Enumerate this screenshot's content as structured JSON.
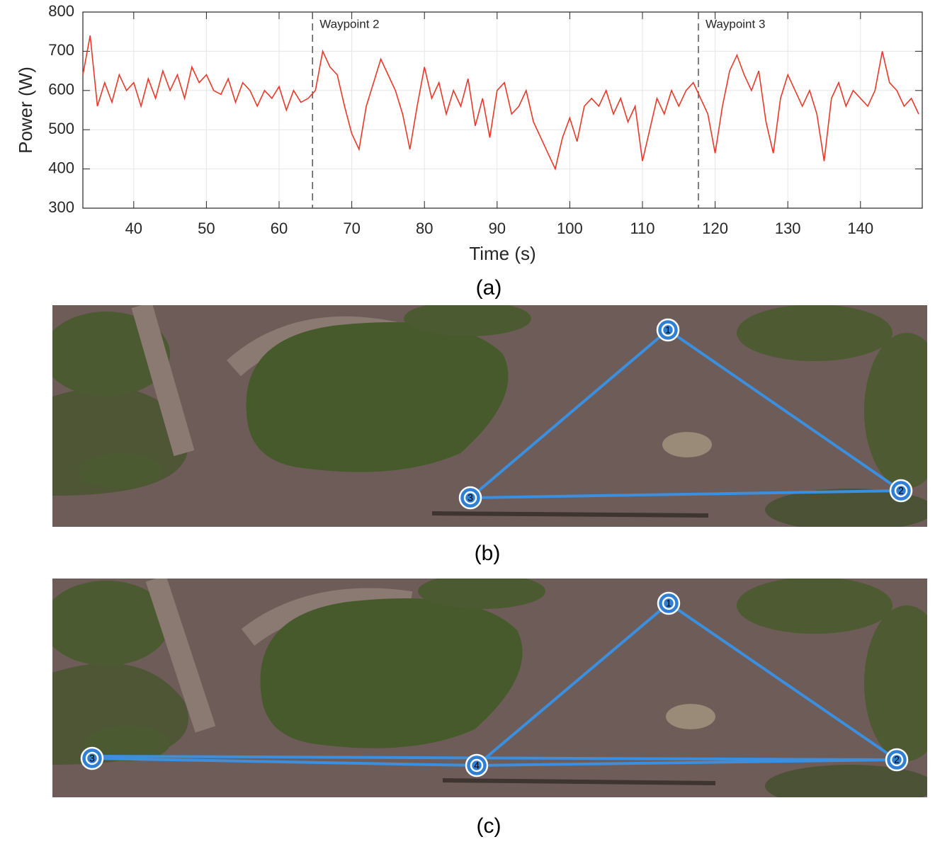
{
  "chart_data": {
    "type": "line",
    "caption": "(a)",
    "xlabel": "Time (s)",
    "ylabel": "Power (W)",
    "color": "#e8382a",
    "grid": true,
    "xlim": [
      33,
      148.5
    ],
    "xticks": [
      40,
      50,
      60,
      70,
      80,
      90,
      100,
      110,
      120,
      130,
      140
    ],
    "ylim": [
      300,
      800
    ],
    "yticks": [
      300,
      400,
      500,
      600,
      700,
      800
    ],
    "annotations": [
      {
        "x": 64.6,
        "label": "Waypoint 2"
      },
      {
        "x": 117.7,
        "label": "Waypoint 3"
      }
    ],
    "x": [
      33,
      34,
      35,
      36,
      37,
      38,
      39,
      40,
      41,
      42,
      43,
      44,
      45,
      46,
      47,
      48,
      49,
      50,
      51,
      52,
      53,
      54,
      55,
      56,
      57,
      58,
      59,
      60,
      61,
      62,
      63,
      64,
      65,
      66,
      67,
      68,
      69,
      70,
      71,
      72,
      73,
      74,
      75,
      76,
      77,
      78,
      79,
      80,
      81,
      82,
      83,
      84,
      85,
      86,
      87,
      88,
      89,
      90,
      91,
      92,
      93,
      94,
      95,
      96,
      97,
      98,
      99,
      100,
      101,
      102,
      103,
      104,
      105,
      106,
      107,
      108,
      109,
      110,
      111,
      112,
      113,
      114,
      115,
      116,
      117,
      118,
      119,
      120,
      121,
      122,
      123,
      124,
      125,
      126,
      127,
      128,
      129,
      130,
      131,
      132,
      133,
      134,
      135,
      136,
      137,
      138,
      139,
      140,
      141,
      142,
      143,
      144,
      145,
      146,
      147,
      148
    ],
    "values": [
      640,
      740,
      560,
      620,
      570,
      640,
      600,
      620,
      560,
      630,
      580,
      650,
      600,
      640,
      580,
      660,
      620,
      640,
      600,
      590,
      630,
      570,
      620,
      600,
      560,
      600,
      580,
      610,
      550,
      600,
      570,
      580,
      600,
      700,
      660,
      640,
      560,
      490,
      450,
      560,
      620,
      680,
      640,
      600,
      540,
      450,
      560,
      660,
      580,
      620,
      540,
      600,
      560,
      630,
      510,
      580,
      480,
      600,
      620,
      540,
      560,
      600,
      520,
      480,
      440,
      400,
      480,
      530,
      470,
      560,
      580,
      560,
      600,
      540,
      580,
      520,
      560,
      420,
      500,
      580,
      540,
      600,
      560,
      600,
      620,
      580,
      540,
      440,
      560,
      650,
      690,
      640,
      600,
      650,
      520,
      440,
      580,
      640,
      600,
      560,
      600,
      540,
      420,
      580,
      620,
      560,
      600,
      580,
      560,
      600,
      700,
      620,
      600,
      560,
      580,
      540
    ]
  },
  "panels": [
    {
      "caption": "(b)",
      "waypoints": [
        "1",
        "2",
        "3"
      ]
    },
    {
      "caption": "(c)",
      "waypoints": [
        "1",
        "2",
        "3",
        "4"
      ]
    }
  ]
}
